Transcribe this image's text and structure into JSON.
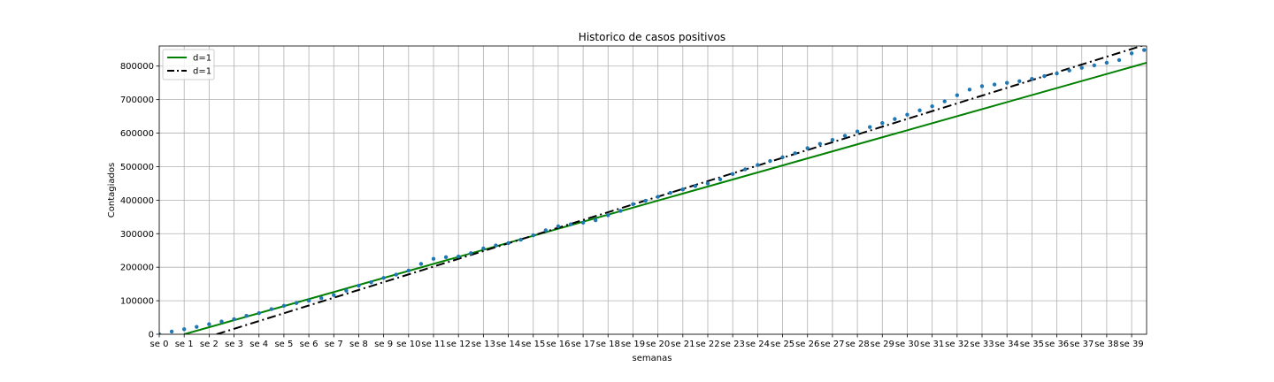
{
  "chart_data": {
    "type": "line",
    "title": "Historico de casos positivos",
    "xlabel": "semanas",
    "ylabel": "Contagiados",
    "grid": true,
    "legend_position": "top-left",
    "xlim": [
      0,
      39.6
    ],
    "ylim": [
      0,
      860000
    ],
    "x_ticks": [
      0,
      1,
      2,
      3,
      4,
      5,
      6,
      7,
      8,
      9,
      10,
      11,
      12,
      13,
      14,
      15,
      16,
      17,
      18,
      19,
      20,
      21,
      22,
      23,
      24,
      25,
      26,
      27,
      28,
      29,
      30,
      31,
      32,
      33,
      34,
      35,
      36,
      37,
      38,
      39
    ],
    "x_tick_labels": [
      "se 0",
      "se 1",
      "se 2",
      "se 3",
      "se 4",
      "se 5",
      "se 6",
      "se 7",
      "se 8",
      "se 9",
      "se 10",
      "se 11",
      "se 12",
      "se 13",
      "se 14",
      "se 15",
      "se 16",
      "se 17",
      "se 18",
      "se 19",
      "se 20",
      "se 21",
      "se 22",
      "se 23",
      "se 24",
      "se 25",
      "se 26",
      "se 27",
      "se 28",
      "se 29",
      "se 30",
      "se 31",
      "se 32",
      "se 33",
      "se 34",
      "se 35",
      "se 36",
      "se 37",
      "se 38",
      "se 39"
    ],
    "y_ticks": [
      0,
      100000,
      200000,
      300000,
      400000,
      500000,
      600000,
      700000,
      800000
    ],
    "y_tick_labels": [
      "0",
      "100000",
      "200000",
      "300000",
      "400000",
      "500000",
      "600000",
      "700000",
      "800000"
    ],
    "series": [
      {
        "name": "d=1",
        "kind": "line",
        "color": "#008000",
        "style": "solid",
        "x": [
          1,
          39.6
        ],
        "y": [
          0,
          810000
        ]
      },
      {
        "name": "d=1",
        "kind": "line",
        "color": "#000000",
        "style": "dashdot",
        "x": [
          2.3,
          39.6
        ],
        "y": [
          0,
          865000
        ]
      },
      {
        "name": "",
        "kind": "scatter",
        "color": "#1f77b4",
        "x": [
          0,
          0.5,
          1,
          1.5,
          2,
          2.5,
          3,
          3.5,
          4,
          4.5,
          5,
          5.5,
          6,
          6.5,
          7,
          7.5,
          8,
          8.5,
          9,
          9.5,
          10,
          10.5,
          11,
          11.5,
          12,
          12.5,
          13,
          13.5,
          14,
          14.5,
          15,
          15.5,
          16,
          16.5,
          17,
          17.5,
          18,
          18.5,
          19,
          19.5,
          20,
          20.5,
          21,
          21.5,
          22,
          22.5,
          23,
          23.5,
          24,
          24.5,
          25,
          25.5,
          26,
          26.5,
          27,
          27.5,
          28,
          28.5,
          29,
          29.5,
          30,
          30.5,
          31,
          31.5,
          32,
          32.5,
          33,
          33.5,
          34,
          34.5,
          35,
          35.5,
          36,
          36.5,
          37,
          37.5,
          38,
          38.5,
          39,
          39.5
        ],
        "y": [
          0,
          8000,
          15000,
          22000,
          30000,
          38000,
          45000,
          55000,
          63000,
          75000,
          85000,
          93000,
          100000,
          108000,
          117000,
          130000,
          145000,
          155000,
          168000,
          178000,
          190000,
          210000,
          225000,
          230000,
          232000,
          242000,
          256000,
          265000,
          272000,
          282000,
          295000,
          310000,
          322000,
          328000,
          333000,
          340000,
          355000,
          368000,
          388000,
          398000,
          410000,
          422000,
          432000,
          442000,
          450000,
          462000,
          478000,
          492000,
          505000,
          517000,
          528000,
          540000,
          555000,
          568000,
          580000,
          592000,
          605000,
          618000,
          630000,
          642000,
          655000,
          668000,
          680000,
          695000,
          713000,
          730000,
          740000,
          745000,
          750000,
          755000,
          762000,
          770000,
          778000,
          787000,
          795000,
          802000,
          810000,
          818000,
          838000,
          848000
        ]
      }
    ]
  }
}
